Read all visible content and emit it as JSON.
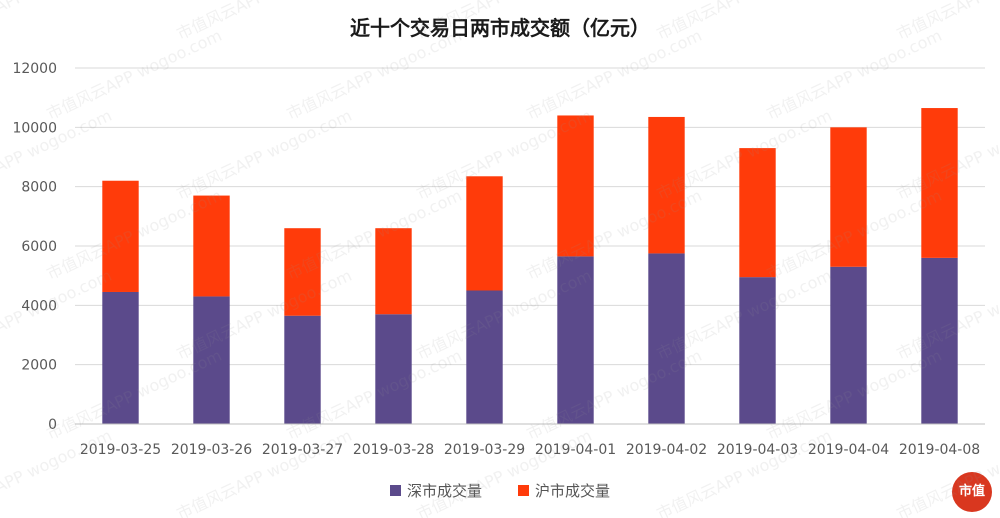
{
  "title": "近十个交易日两市成交额（亿元）",
  "colors": {
    "shenzhen": "#5b4a8b",
    "shanghai": "#ff3b0a",
    "grid": "#d9d9d9",
    "axis_text": "#595959"
  },
  "legend": [
    {
      "label": "深市成交量",
      "color": "#5b4a8b"
    },
    {
      "label": "沪市成交量",
      "color": "#ff3b0a"
    }
  ],
  "watermark": "市值风云APP wogoo.com",
  "logo_text": "市值",
  "chart_data": {
    "type": "bar",
    "stacked": true,
    "categories": [
      "2019-03-25",
      "2019-03-26",
      "2019-03-27",
      "2019-03-28",
      "2019-03-29",
      "2019-04-01",
      "2019-04-02",
      "2019-04-03",
      "2019-04-04",
      "2019-04-08"
    ],
    "series": [
      {
        "name": "深市成交量",
        "values": [
          4450,
          4300,
          3650,
          3700,
          4500,
          5650,
          5750,
          4950,
          5300,
          5600
        ]
      },
      {
        "name": "沪市成交量",
        "values": [
          3750,
          3400,
          2950,
          2900,
          3850,
          4750,
          4600,
          4350,
          4700,
          5050
        ]
      }
    ],
    "title": "近十个交易日两市成交额（亿元）",
    "xlabel": "",
    "ylabel": "",
    "ylim": [
      0,
      12000
    ],
    "yticks": [
      0,
      2000,
      4000,
      6000,
      8000,
      10000,
      12000
    ],
    "grid": true,
    "legend_position": "bottom"
  }
}
